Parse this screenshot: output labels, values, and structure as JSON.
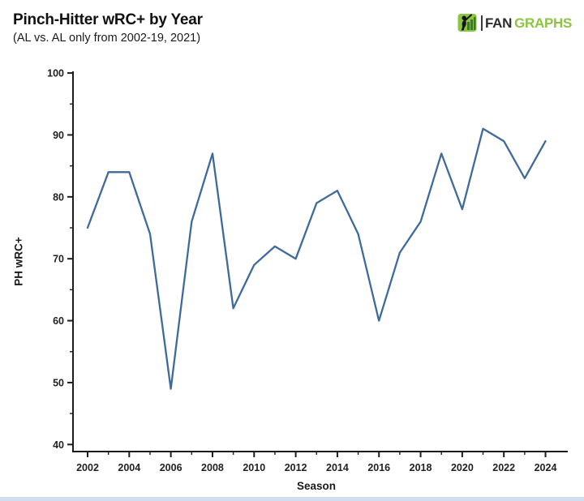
{
  "header": {
    "title": "Pinch-Hitter wRC+ by Year",
    "subtitle": "(AL vs. AL only from 2002-19, 2021)"
  },
  "logo": {
    "fan": "FAN",
    "graphs": "GRAPHS",
    "icon": "fangraphs-batter-icon",
    "green": "#8cc540",
    "dark": "#2d2d2d"
  },
  "chart_data": {
    "type": "line",
    "title": "Pinch-Hitter wRC+ by Year",
    "subtitle": "(AL vs. AL only from 2002-19, 2021)",
    "xlabel": "Season",
    "ylabel": "PH wRC+",
    "x": [
      2002,
      2003,
      2004,
      2005,
      2006,
      2007,
      2008,
      2009,
      2010,
      2011,
      2012,
      2013,
      2014,
      2015,
      2016,
      2017,
      2018,
      2019,
      2020,
      2021,
      2022,
      2023,
      2024
    ],
    "series": [
      {
        "name": "PH wRC+",
        "values": [
          75,
          84,
          84,
          74,
          49,
          76,
          87,
          62,
          69,
          72,
          70,
          79,
          81,
          74,
          60,
          71,
          76,
          87,
          78,
          91,
          89,
          83,
          89
        ]
      }
    ],
    "ylim": [
      40,
      100
    ],
    "xlim": [
      2002,
      2024
    ],
    "y_ticks_major": [
      40,
      50,
      60,
      70,
      80,
      90,
      100
    ],
    "y_ticks_minor": [
      45,
      55,
      65,
      75,
      85,
      95
    ],
    "x_ticks_major": [
      2002,
      2004,
      2006,
      2008,
      2010,
      2012,
      2014,
      2016,
      2018,
      2020,
      2022,
      2024
    ],
    "x_ticks_minor": [
      2003,
      2005,
      2007,
      2009,
      2011,
      2013,
      2015,
      2017,
      2019,
      2021,
      2023
    ],
    "line_color": "#3f6a9c",
    "axis_color": "#1c1c1c",
    "grid": false,
    "legend": null
  }
}
